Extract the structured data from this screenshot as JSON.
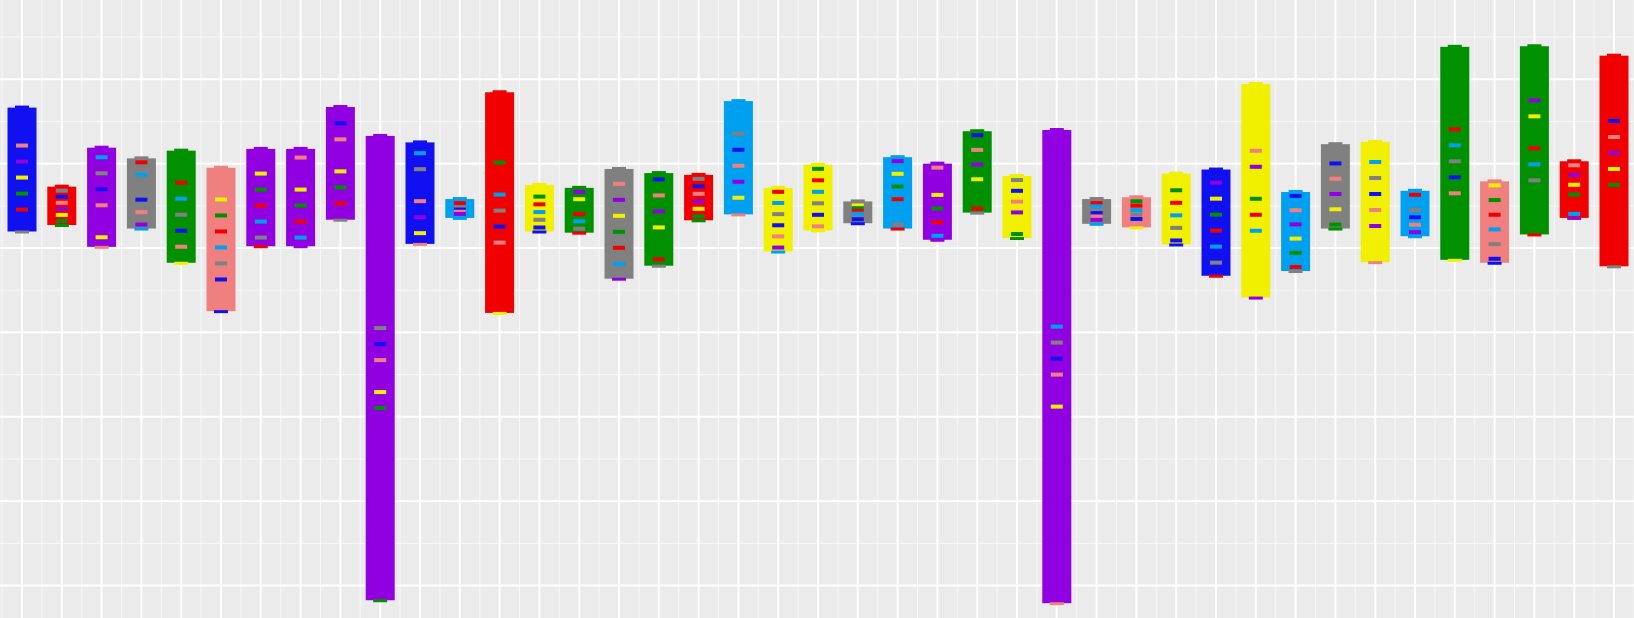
{
  "chart_data": {
    "type": "bar",
    "title": "",
    "xlabel": "",
    "ylabel": "",
    "grid": true,
    "legend": "none",
    "xlim": [
      0,
      41
    ],
    "ylim": [
      0,
      100
    ],
    "background": "#EBEBEB",
    "grid_color": "#FFFFFF",
    "colors": {
      "blue": "#1010F0",
      "red": "#F00000",
      "purple": "#9000E0",
      "gray": "#808080",
      "green": "#009000",
      "salmon": "#F08080",
      "cyan": "#00A0F0",
      "yellow": "#F0F000"
    },
    "bars": [
      {
        "color": "blue",
        "low": 65.0,
        "high": 86.0
      },
      {
        "color": "red",
        "low": 66.1,
        "high": 72.6
      },
      {
        "color": "purple",
        "low": 62.4,
        "high": 79.2
      },
      {
        "color": "gray",
        "low": 65.5,
        "high": 77.4
      },
      {
        "color": "green",
        "low": 59.7,
        "high": 78.7
      },
      {
        "color": "salmon",
        "low": 51.5,
        "high": 75.8
      },
      {
        "color": "purple",
        "low": 62.5,
        "high": 79.0
      },
      {
        "color": "purple",
        "low": 62.5,
        "high": 79.0
      },
      {
        "color": "purple",
        "low": 67.0,
        "high": 86.1
      },
      {
        "color": "purple",
        "low": 2.5,
        "high": 81.2
      },
      {
        "color": "blue",
        "low": 62.9,
        "high": 80.1
      },
      {
        "color": "cyan",
        "low": 67.3,
        "high": 70.5
      },
      {
        "color": "red",
        "low": 51.2,
        "high": 88.6
      },
      {
        "color": "yellow",
        "low": 65.0,
        "high": 72.9
      },
      {
        "color": "green",
        "low": 64.8,
        "high": 72.4
      },
      {
        "color": "gray",
        "low": 57.0,
        "high": 75.6
      },
      {
        "color": "green",
        "low": 59.2,
        "high": 74.9
      },
      {
        "color": "red",
        "low": 66.9,
        "high": 74.6
      },
      {
        "color": "cyan",
        "low": 67.9,
        "high": 87.1
      },
      {
        "color": "yellow",
        "low": 61.6,
        "high": 72.4
      },
      {
        "color": "yellow",
        "low": 65.2,
        "high": 76.3
      },
      {
        "color": "gray",
        "low": 66.4,
        "high": 70.1
      },
      {
        "color": "cyan",
        "low": 65.5,
        "high": 77.6
      },
      {
        "color": "purple",
        "low": 63.6,
        "high": 76.5
      },
      {
        "color": "green",
        "low": 68.2,
        "high": 82.0
      },
      {
        "color": "yellow",
        "low": 63.9,
        "high": 74.4
      },
      {
        "color": "purple",
        "low": 2.0,
        "high": 82.2
      },
      {
        "color": "gray",
        "low": 66.3,
        "high": 70.5
      },
      {
        "color": "salmon",
        "low": 65.7,
        "high": 70.8
      },
      {
        "color": "yellow",
        "low": 62.8,
        "high": 74.8
      },
      {
        "color": "blue",
        "low": 57.5,
        "high": 75.5
      },
      {
        "color": "yellow",
        "low": 53.8,
        "high": 90.0
      },
      {
        "color": "cyan",
        "low": 58.3,
        "high": 71.7
      },
      {
        "color": "gray",
        "low": 65.5,
        "high": 79.8
      },
      {
        "color": "yellow",
        "low": 59.8,
        "high": 80.2
      },
      {
        "color": "cyan",
        "low": 64.2,
        "high": 71.9
      },
      {
        "color": "green",
        "low": 60.2,
        "high": 96.3
      },
      {
        "color": "salmon",
        "low": 59.7,
        "high": 73.5
      },
      {
        "color": "green",
        "low": 64.5,
        "high": 96.4
      },
      {
        "color": "red",
        "low": 67.3,
        "high": 76.9
      },
      {
        "color": "red",
        "low": 59.1,
        "high": 94.8
      }
    ]
  }
}
